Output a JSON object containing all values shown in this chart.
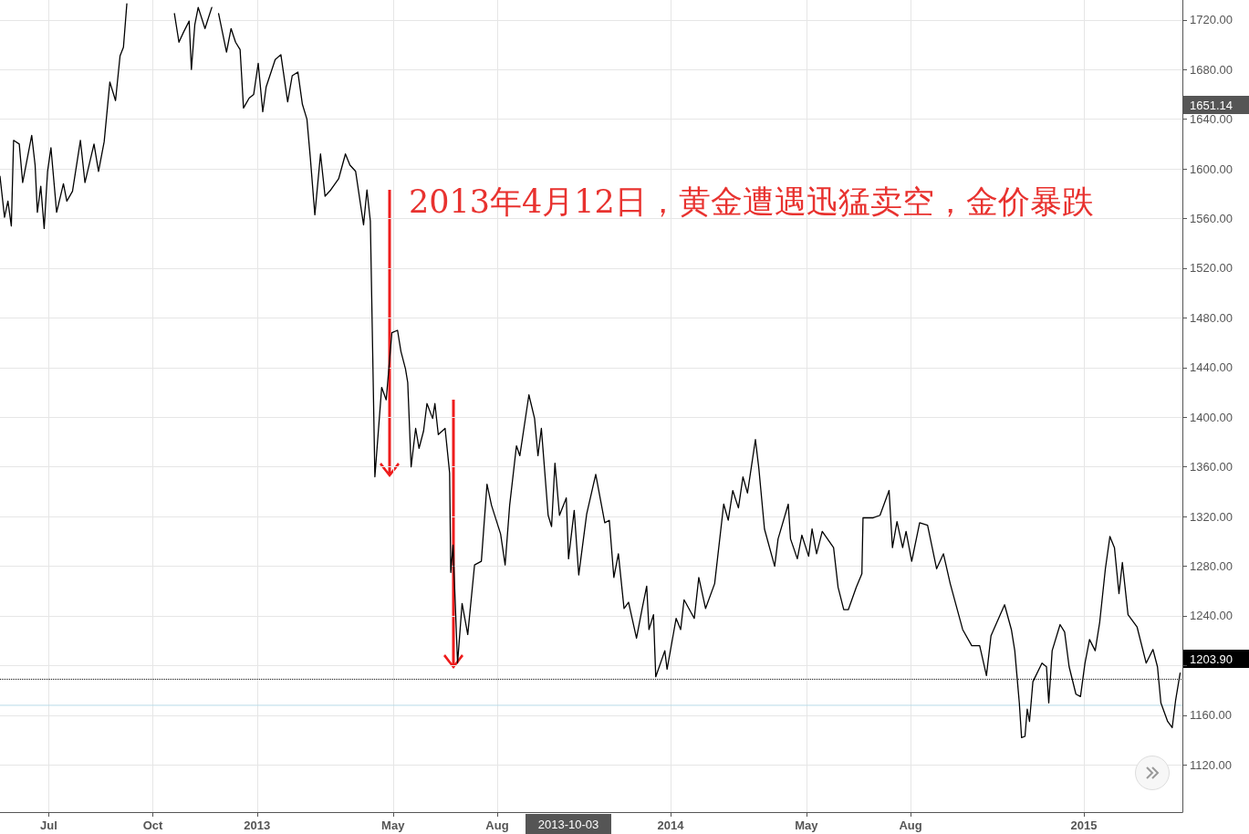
{
  "chart_data": {
    "type": "line",
    "annotations": [
      "2013年4月12日，黄金遭遇迅猛卖空，金价暴跌",
      "1651.14",
      "1203.90",
      "2013-10-03"
    ],
    "series": [
      {
        "color": "#000000",
        "x": [
          "2012-05-19",
          "2012-05-23",
          "2012-05-26",
          "2012-05-29",
          "2012-05-31",
          "2012-06-05",
          "2012-06-08",
          "2012-06-16",
          "2012-06-19",
          "2012-06-21",
          "2012-06-24",
          "2012-06-27",
          "2012-06-30",
          "2012-07-03",
          "2012-07-08",
          "2012-07-14",
          "2012-07-17",
          "2012-07-22",
          "2012-07-29",
          "2012-08-02",
          "2012-08-10",
          "2012-08-14",
          "2012-08-19",
          "2012-08-24",
          "2012-08-29",
          "2012-09-02",
          "2012-09-05",
          "2012-09-08",
          "2012-09-25",
          "2012-10-16",
          "2012-10-20",
          "2012-10-24",
          "2012-10-28",
          "2012-11-02",
          "2012-11-04",
          "2012-11-07",
          "2012-11-10",
          "2012-11-16",
          "2012-11-22",
          "2012-11-27",
          "2012-11-28",
          "2012-12-05",
          "2012-12-09",
          "2012-12-13",
          "2012-12-17",
          "2012-12-20",
          "2012-12-25",
          "2012-12-29",
          "2013-01-02",
          "2013-01-06",
          "2013-01-09",
          "2013-01-17",
          "2013-01-22",
          "2013-01-28",
          "2013-02-01",
          "2013-02-06",
          "2013-02-10",
          "2013-02-14",
          "2013-02-17",
          "2013-02-21",
          "2013-02-26",
          "2013-03-02",
          "2013-03-07",
          "2013-03-14",
          "2013-03-20",
          "2013-03-24",
          "2013-03-29",
          "2013-04-05",
          "2013-04-08",
          "2013-04-11",
          "2013-04-15",
          "2013-04-21",
          "2013-04-25",
          "2013-04-30",
          "2013-05-05",
          "2013-05-08",
          "2013-05-12",
          "2013-05-14",
          "2013-05-17",
          "2013-05-21",
          "2013-05-24",
          "2013-05-28",
          "2013-05-31",
          "2013-06-05",
          "2013-06-07",
          "2013-06-10",
          "2013-06-16",
          "2013-06-20",
          "2013-06-21",
          "2013-06-23",
          "2013-06-27",
          "2013-07-01",
          "2013-07-06",
          "2013-07-12",
          "2013-07-18",
          "2013-07-23",
          "2013-07-27",
          "2013-08-04",
          "2013-08-08",
          "2013-08-12",
          "2013-08-18",
          "2013-08-21",
          "2013-08-29",
          "2013-09-03",
          "2013-09-06",
          "2013-09-09",
          "2013-09-15",
          "2013-09-18",
          "2013-09-21",
          "2013-09-25",
          "2013-10-01",
          "2013-10-03",
          "2013-10-08",
          "2013-10-12",
          "2013-10-19",
          "2013-10-27",
          "2013-11-04",
          "2013-11-08",
          "2013-11-12",
          "2013-11-16",
          "2013-11-21",
          "2013-11-25",
          "2013-12-02",
          "2013-12-07",
          "2013-12-11",
          "2013-12-13",
          "2013-12-17",
          "2013-12-19",
          "2013-12-27",
          "2013-12-29",
          "2014-01-06",
          "2014-01-10",
          "2014-01-13",
          "2014-01-22",
          "2014-01-26",
          "2014-02-01",
          "2014-02-09",
          "2014-02-17",
          "2014-02-21",
          "2014-02-25",
          "2014-03-02",
          "2014-03-06",
          "2014-03-10",
          "2014-03-17",
          "2014-03-20",
          "2014-03-25",
          "2014-04-03",
          "2014-04-06",
          "2014-04-15",
          "2014-04-17",
          "2014-04-23",
          "2014-04-27",
          "2014-05-03",
          "2014-05-06",
          "2014-05-10",
          "2014-05-15",
          "2014-05-25",
          "2014-05-29",
          "2014-06-03",
          "2014-06-07",
          "2014-06-14",
          "2014-06-19",
          "2014-06-20",
          "2014-06-29",
          "2014-07-05",
          "2014-07-13",
          "2014-07-16",
          "2014-07-20",
          "2014-07-25",
          "2014-07-28",
          "2014-08-02",
          "2014-08-09",
          "2014-08-16",
          "2014-08-24",
          "2014-08-30",
          "2014-09-05",
          "2014-09-16",
          "2014-09-24",
          "2014-10-01",
          "2014-10-07",
          "2014-10-11",
          "2014-10-23",
          "2014-10-29",
          "2014-11-01",
          "2014-11-05",
          "2014-11-07",
          "2014-11-10",
          "2014-11-12",
          "2014-11-14",
          "2014-11-17",
          "2014-11-25",
          "2014-11-29",
          "2014-12-01",
          "2014-12-04",
          "2014-12-11",
          "2014-12-15",
          "2014-12-19",
          "2014-12-25",
          "2014-12-29",
          "2015-01-02",
          "2015-01-06",
          "2015-01-11",
          "2015-01-15",
          "2015-01-20",
          "2015-01-24",
          "2015-01-28",
          "2015-02-01",
          "2015-02-04",
          "2015-02-09",
          "2015-02-17",
          "2015-02-25",
          "2015-03-03",
          "2015-03-07",
          "2015-03-10",
          "2015-03-16",
          "2015-03-20",
          "2015-03-23",
          "2015-03-27"
        ],
        "values": [
          1594,
          1561,
          1574,
          1554,
          1623,
          1620,
          1589,
          1627,
          1603,
          1565,
          1586,
          1552,
          1598,
          1617,
          1565,
          1588,
          1574,
          1582,
          1623,
          1589,
          1620,
          1598,
          1622,
          1670,
          1655,
          1691,
          1698,
          1733,
          null,
          null,
          1725,
          1702,
          1710,
          1719,
          1680,
          1716,
          1730,
          1713,
          1730,
          null,
          1725,
          1694,
          1713,
          1702,
          1696,
          1649,
          1657,
          1660,
          1685,
          1646,
          1666,
          1688,
          1692,
          1654,
          1675,
          1678,
          1652,
          1640,
          1609,
          1563,
          1612,
          1578,
          1583,
          1592,
          1612,
          1603,
          1598,
          1555,
          1583,
          1558,
          1352,
          1424,
          1414,
          1468,
          1470,
          1453,
          1439,
          1428,
          1360,
          1391,
          1375,
          1389,
          1411,
          1399,
          1411,
          1386,
          1391,
          1355,
          1275,
          1297,
          1202,
          1250,
          1225,
          1281,
          1284,
          1346,
          1329,
          1306,
          1281,
          1329,
          1377,
          1369,
          1418,
          1399,
          1369,
          1391,
          1321,
          1312,
          1363,
          1321,
          1335,
          1286,
          1325,
          1273,
          1322,
          1354,
          1315,
          1317,
          1271,
          1290,
          1246,
          1251,
          1222,
          1246,
          1264,
          1229,
          1241,
          1191,
          1212,
          1197,
          1238,
          1229,
          1253,
          1238,
          1271,
          1246,
          1266,
          1330,
          1317,
          1341,
          1327,
          1352,
          1339,
          1382,
          1359,
          1310,
          1280,
          1302,
          1330,
          1302,
          1286,
          1305,
          1288,
          1310,
          1290,
          1308,
          1295,
          1263,
          1245,
          1245,
          1263,
          1274,
          1319,
          1319,
          1321,
          1341,
          1295,
          1316,
          1295,
          1308,
          1284,
          1315,
          1313,
          1278,
          1290,
          1266,
          1229,
          1216,
          1216,
          1192,
          1224,
          1249,
          1229,
          1212,
          1170,
          1142,
          1143,
          1165,
          1155,
          1187,
          1202,
          1199,
          1170,
          1212,
          1233,
          1227,
          1199,
          1177,
          1175,
          1202,
          1221,
          1212,
          1235,
          1278,
          1304,
          1295,
          1258,
          1283,
          1241,
          1231,
          1202,
          1213,
          1199,
          1170,
          1155,
          1150,
          1172,
          1194
        ]
      }
    ],
    "xlim": [
      "2012-05-19",
      "2015-03-29"
    ],
    "xticks": [
      {
        "value": "2012-07-01",
        "label": "Jul"
      },
      {
        "value": "2012-10-01",
        "label": "Oct"
      },
      {
        "value": "2013-01-01",
        "label": "2013"
      },
      {
        "value": "2013-05-01",
        "label": "May"
      },
      {
        "value": "2013-08-01",
        "label": "Aug"
      },
      {
        "value": "2014-01-01",
        "label": "2014"
      },
      {
        "value": "2014-05-01",
        "label": "May"
      },
      {
        "value": "2014-08-01",
        "label": "Aug"
      },
      {
        "value": "2015-01-01",
        "label": "2015"
      }
    ],
    "ylim": [
      1082,
      1736
    ],
    "yticks": [
      {
        "value": 1120,
        "label": "1120.00"
      },
      {
        "value": 1160,
        "label": "1160.00"
      },
      {
        "value": 1200,
        "label": null
      },
      {
        "value": 1240,
        "label": "1240.00"
      },
      {
        "value": 1280,
        "label": "1280.00"
      },
      {
        "value": 1320,
        "label": "1320.00"
      },
      {
        "value": 1360,
        "label": "1360.00"
      },
      {
        "value": 1400,
        "label": "1400.00"
      },
      {
        "value": 1440,
        "label": "1440.00"
      },
      {
        "value": 1480,
        "label": "1480.00"
      },
      {
        "value": 1520,
        "label": "1520.00"
      },
      {
        "value": 1560,
        "label": "1560.00"
      },
      {
        "value": 1600,
        "label": "1600.00"
      },
      {
        "value": 1640,
        "label": "1640.00"
      },
      {
        "value": 1680,
        "label": "1680.00"
      },
      {
        "value": 1720,
        "label": "1720.00"
      }
    ],
    "ref_lines": [
      {
        "axis": "y",
        "value": 1189,
        "color": "#000000",
        "line_style": "dotted"
      },
      {
        "axis": "y",
        "value": 1168,
        "color": "#b7dbe8",
        "line_style": "solid"
      }
    ],
    "grid": true,
    "marker": "none",
    "line_style": "solid"
  }
}
